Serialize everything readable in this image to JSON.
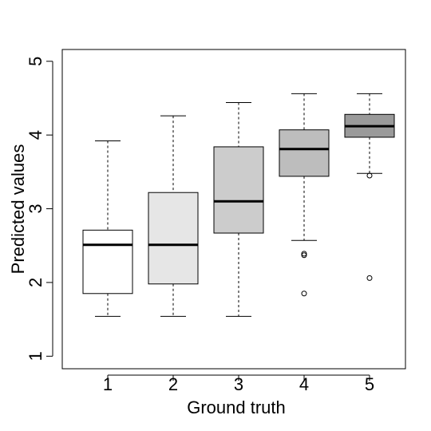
{
  "chart_data": {
    "type": "box",
    "xlabel": "Ground truth",
    "ylabel": "Predicted values",
    "categories": [
      "1",
      "2",
      "3",
      "4",
      "5"
    ],
    "colors": [
      "#ffffff",
      "#e6e6e6",
      "#cccccc",
      "#bdbdbd",
      "#9a9a9a"
    ],
    "boxes": [
      {
        "whislo": 1.54,
        "q1": 1.85,
        "med": 2.51,
        "q3": 2.71,
        "whishi": 3.92,
        "outliers": []
      },
      {
        "whislo": 1.54,
        "q1": 1.98,
        "med": 2.51,
        "q3": 3.22,
        "whishi": 4.26,
        "outliers": []
      },
      {
        "whislo": 1.54,
        "q1": 2.67,
        "med": 3.1,
        "q3": 3.84,
        "whishi": 4.44,
        "outliers": []
      },
      {
        "whislo": 2.57,
        "q1": 3.44,
        "med": 3.81,
        "q3": 4.07,
        "whishi": 4.56,
        "outliers": [
          2.39,
          2.37,
          1.85
        ]
      },
      {
        "whislo": 3.48,
        "q1": 3.97,
        "med": 4.12,
        "q3": 4.28,
        "whishi": 4.56,
        "outliers": [
          3.45,
          2.06
        ]
      }
    ],
    "ylim": [
      0.83,
      5.16
    ],
    "yticks": [
      1,
      2,
      3,
      4,
      5
    ]
  }
}
